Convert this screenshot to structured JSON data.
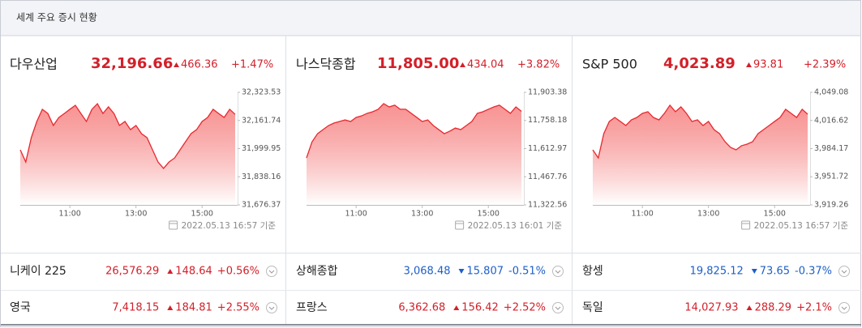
{
  "header": {
    "title": "세계 주요 증시 현황"
  },
  "chart_data": [
    {
      "type": "line",
      "title": "다우산업",
      "price": "32,196.66",
      "change": "466.36",
      "change_rate": "+1.47%",
      "direction": "up",
      "color": "#e8282e",
      "x": [
        "09:30",
        "09:40",
        "09:50",
        "10:00",
        "10:10",
        "10:20",
        "10:30",
        "10:40",
        "10:50",
        "11:00",
        "11:10",
        "11:20",
        "11:30",
        "11:40",
        "11:50",
        "12:00",
        "12:10",
        "12:20",
        "12:30",
        "12:40",
        "12:50",
        "13:00",
        "13:10",
        "13:20",
        "13:30",
        "13:40",
        "13:50",
        "14:00",
        "14:10",
        "14:20",
        "14:30",
        "14:40",
        "14:50",
        "15:00",
        "15:10",
        "15:20",
        "15:30",
        "15:40",
        "15:50",
        "16:00"
      ],
      "values": [
        31993,
        31923,
        32063,
        32156,
        32226,
        32202,
        32133,
        32179,
        32202,
        32226,
        32249,
        32202,
        32156,
        32226,
        32258,
        32202,
        32240,
        32202,
        32133,
        32156,
        32109,
        32133,
        32086,
        32063,
        31993,
        31923,
        31886,
        31923,
        31946,
        31993,
        32040,
        32086,
        32109,
        32156,
        32179,
        32226,
        32202,
        32179,
        32226,
        32197
      ],
      "xlim": [
        "09:30",
        "16:00"
      ],
      "ylim": [
        31676.37,
        32323.53
      ],
      "yticks": [
        {
          "value": 32323.53,
          "label": "32,323.53"
        },
        {
          "value": 32161.74,
          "label": "32,161.74"
        },
        {
          "value": 31999.95,
          "label": "31,999.95"
        },
        {
          "value": 31838.16,
          "label": "31,838.16"
        },
        {
          "value": 31676.37,
          "label": "31,676.37"
        }
      ],
      "xticks": [
        "11:00",
        "13:00",
        "15:00"
      ],
      "timestamp": "2022.05.13 16:57 기준"
    },
    {
      "type": "line",
      "title": "나스닥종합",
      "price": "11,805.00",
      "change": "434.04",
      "change_rate": "+3.82%",
      "direction": "up",
      "color": "#e8282e",
      "x": [
        "09:30",
        "09:40",
        "09:50",
        "10:00",
        "10:10",
        "10:20",
        "10:30",
        "10:40",
        "10:50",
        "11:00",
        "11:10",
        "11:20",
        "11:30",
        "11:40",
        "11:50",
        "12:00",
        "12:10",
        "12:20",
        "12:30",
        "12:40",
        "12:50",
        "13:00",
        "13:10",
        "13:20",
        "13:30",
        "13:40",
        "13:50",
        "14:00",
        "14:10",
        "14:20",
        "14:30",
        "14:40",
        "14:50",
        "15:00",
        "15:10",
        "15:20",
        "15:30",
        "15:40",
        "15:50",
        "16:00"
      ],
      "values": [
        11565,
        11648,
        11690,
        11711,
        11732,
        11745,
        11753,
        11761,
        11753,
        11774,
        11782,
        11795,
        11803,
        11816,
        11845,
        11828,
        11837,
        11816,
        11816,
        11795,
        11774,
        11753,
        11761,
        11732,
        11711,
        11690,
        11703,
        11719,
        11711,
        11732,
        11753,
        11795,
        11803,
        11816,
        11828,
        11837,
        11816,
        11795,
        11828,
        11805
      ],
      "xlim": [
        "09:30",
        "16:00"
      ],
      "ylim": [
        11322.56,
        11903.38
      ],
      "yticks": [
        {
          "value": 11903.38,
          "label": "11,903.38"
        },
        {
          "value": 11758.18,
          "label": "11,758.18"
        },
        {
          "value": 11612.97,
          "label": "11,612.97"
        },
        {
          "value": 11467.76,
          "label": "11,467.76"
        },
        {
          "value": 11322.56,
          "label": "11,322.56"
        }
      ],
      "xticks": [
        "11:00",
        "13:00",
        "15:00"
      ],
      "timestamp": "2022.05.13 16:01 기준"
    },
    {
      "type": "line",
      "title": "S&P 500",
      "price": "4,023.89",
      "change": "93.81",
      "change_rate": "+2.39%",
      "direction": "up",
      "color": "#e8282e",
      "x": [
        "09:30",
        "09:40",
        "09:50",
        "10:00",
        "10:10",
        "10:20",
        "10:30",
        "10:40",
        "10:50",
        "11:00",
        "11:10",
        "11:20",
        "11:30",
        "11:40",
        "11:50",
        "12:00",
        "12:10",
        "12:20",
        "12:30",
        "12:40",
        "12:50",
        "13:00",
        "13:10",
        "13:20",
        "13:30",
        "13:40",
        "13:50",
        "14:00",
        "14:10",
        "14:20",
        "14:30",
        "14:40",
        "14:50",
        "15:00",
        "15:10",
        "15:20",
        "15:30",
        "15:40",
        "15:50",
        "16:00"
      ],
      "values": [
        3982.8,
        3973.4,
        4001.5,
        4015.5,
        4020.1,
        4015.5,
        4010.8,
        4017.3,
        4020.1,
        4024.8,
        4026.7,
        4020.1,
        4017.3,
        4024.8,
        4034.2,
        4026.7,
        4032.3,
        4024.8,
        4015.5,
        4017.3,
        4010.8,
        4015.5,
        4006.1,
        4001.5,
        3992.1,
        3985.6,
        3982.8,
        3987.5,
        3989.3,
        3992.1,
        4001.5,
        4006.1,
        4010.8,
        4015.5,
        4020.1,
        4029.5,
        4024.8,
        4020.1,
        4029.5,
        4023.9
      ],
      "xlim": [
        "09:30",
        "16:00"
      ],
      "ylim": [
        3919.26,
        4049.08
      ],
      "yticks": [
        {
          "value": 4049.08,
          "label": "4,049.08"
        },
        {
          "value": 4016.62,
          "label": "4,016.62"
        },
        {
          "value": 3984.17,
          "label": "3,984.17"
        },
        {
          "value": 3951.72,
          "label": "3,951.72"
        },
        {
          "value": 3919.26,
          "label": "3,919.26"
        }
      ],
      "xticks": [
        "11:00",
        "13:00",
        "15:00"
      ],
      "timestamp": "2022.05.13 16:57 기준"
    }
  ],
  "table": {
    "rows": [
      [
        {
          "name": "니케이 225",
          "price": "26,576.29",
          "change": "148.64",
          "change_rate": "+0.56%",
          "direction": "up"
        },
        {
          "name": "상해종합",
          "price": "3,068.48",
          "change": "15.807",
          "change_rate": "-0.51%",
          "direction": "down"
        },
        {
          "name": "항셍",
          "price": "19,825.12",
          "change": "73.65",
          "change_rate": "-0.37%",
          "direction": "down"
        }
      ],
      [
        {
          "name": "영국",
          "price": "7,418.15",
          "change": "184.81",
          "change_rate": "+2.55%",
          "direction": "up"
        },
        {
          "name": "프랑스",
          "price": "6,362.68",
          "change": "156.42",
          "change_rate": "+2.52%",
          "direction": "up"
        },
        {
          "name": "독일",
          "price": "14,027.93",
          "change": "288.29",
          "change_rate": "+2.1%",
          "direction": "up"
        }
      ]
    ]
  }
}
